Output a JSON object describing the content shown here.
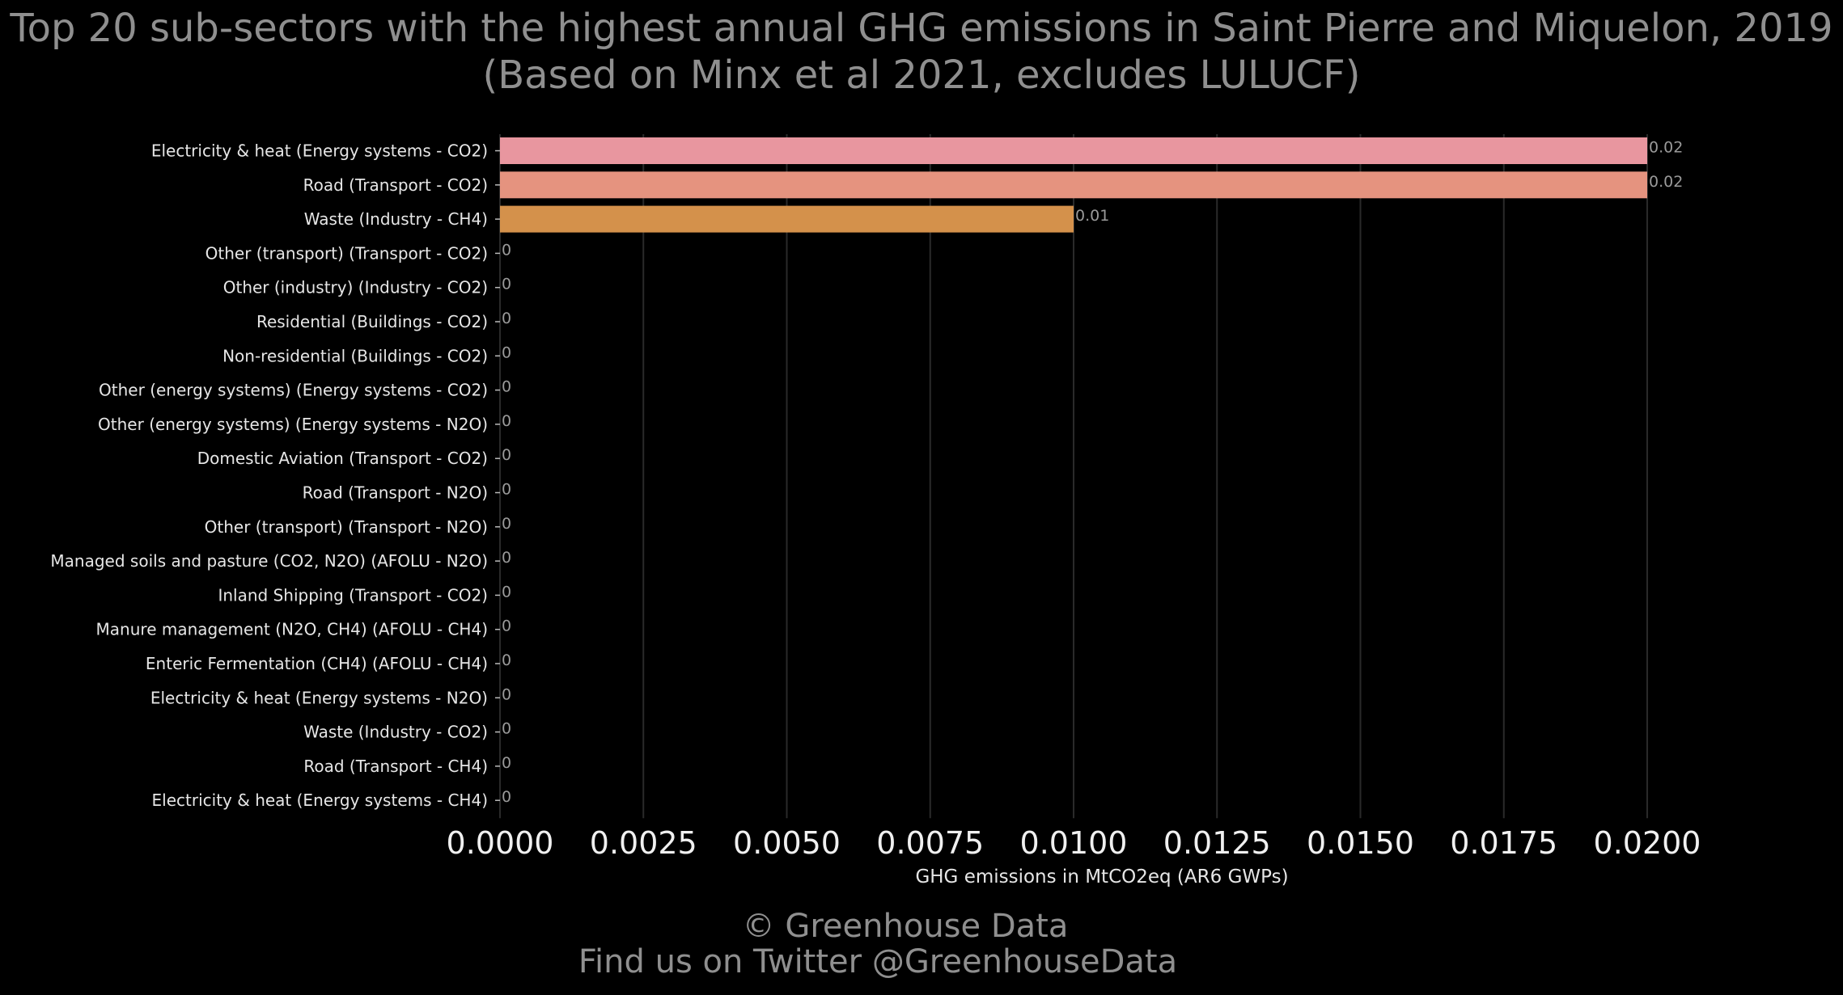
{
  "chart_data": {
    "type": "bar",
    "orientation": "horizontal",
    "title": "Top 20 sub-sectors with the highest annual GHG emissions in Saint Pierre and Miquelon, 2019",
    "subtitle": "(Based on Minx et al 2021, excludes LULUCF)",
    "xlabel": "GHG emissions in MtCO2eq (AR6 GWPs)",
    "ylabel": "",
    "xlim": [
      0,
      0.02
    ],
    "x_ticks": [
      "0.0000",
      "0.0025",
      "0.0050",
      "0.0075",
      "0.0100",
      "0.0125",
      "0.0150",
      "0.0175",
      "0.0200"
    ],
    "grid": "vertical",
    "categories": [
      "Electricity & heat (Energy systems - CO2)",
      "Road (Transport - CO2)",
      "Waste (Industry - CH4)",
      "Other (transport) (Transport - CO2)",
      "Other (industry) (Industry - CO2)",
      "Residential (Buildings - CO2)",
      "Non-residential (Buildings - CO2)",
      "Other (energy systems) (Energy systems - CO2)",
      "Other (energy systems) (Energy systems - N2O)",
      "Domestic Aviation (Transport - CO2)",
      "Road (Transport - N2O)",
      "Other (transport) (Transport - N2O)",
      "Managed soils and pasture (CO2, N2O) (AFOLU - N2O)",
      "Inland Shipping (Transport - CO2)",
      "Manure management (N2O, CH4) (AFOLU - CH4)",
      "Enteric Fermentation (CH4) (AFOLU - CH4)",
      "Electricity & heat (Energy systems - N2O)",
      "Waste (Industry - CO2)",
      "Road (Transport - CH4)",
      "Electricity & heat (Energy systems - CH4)"
    ],
    "values": [
      0.02,
      0.02,
      0.01,
      0,
      0,
      0,
      0,
      0,
      0,
      0,
      0,
      0,
      0,
      0,
      0,
      0,
      0,
      0,
      0,
      0
    ],
    "data_labels": [
      "0.02",
      "0.02",
      "0.01",
      "0",
      "0",
      "0",
      "0",
      "0",
      "0",
      "0",
      "0",
      "0",
      "0",
      "0",
      "0",
      "0",
      "0",
      "0",
      "0",
      "0"
    ],
    "bar_colors": [
      "#e8969f",
      "#e5937f",
      "#d4914b"
    ],
    "background": "#000000",
    "grid_color": "#2a2a2a"
  },
  "credits": {
    "line1": "© Greenhouse Data",
    "line2": "Find us on Twitter @GreenhouseData"
  }
}
